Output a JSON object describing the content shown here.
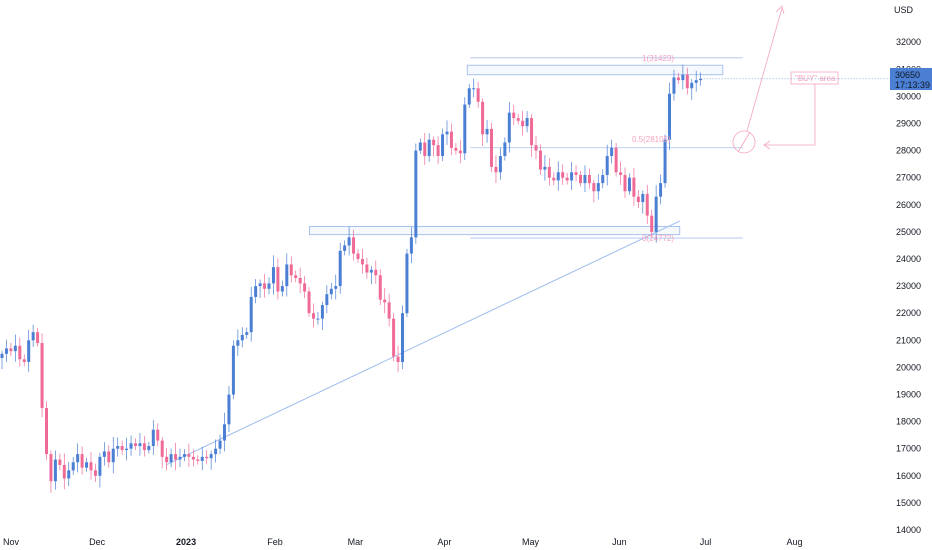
{
  "currency_label": "USD",
  "price_badge": {
    "price": "30650",
    "timer": "17:13:39"
  },
  "colors": {
    "up": "#4a7fd4",
    "down": "#f06a96",
    "trendline": "#9dbcee",
    "zone_stroke": "#a9c2ee",
    "annotation": "#f4a3bf",
    "badge_bg": "#4a7fd4"
  },
  "annotations": {
    "fib1": "1(31423)",
    "fib05": "0.5(28105)",
    "fib0": "0(24772)",
    "buy_area": "\"BUY\" area"
  },
  "chart_data": {
    "type": "candlestick",
    "title": "",
    "ylim": [
      14000,
      32000
    ],
    "y_ticks": [
      14000,
      15000,
      16000,
      17000,
      18000,
      19000,
      20000,
      21000,
      22000,
      23000,
      24000,
      25000,
      26000,
      27000,
      28000,
      29000,
      30000,
      31000,
      32000
    ],
    "x_ticks": [
      {
        "label": "Nov",
        "date": "2022-11-01"
      },
      {
        "label": "Dec",
        "date": "2022-12-01"
      },
      {
        "label": "2023",
        "date": "2023-01-01"
      },
      {
        "label": "Feb",
        "date": "2023-02-01"
      },
      {
        "label": "Mar",
        "date": "2023-03-01"
      },
      {
        "label": "Apr",
        "date": "2023-04-01"
      },
      {
        "label": "May",
        "date": "2023-05-01"
      },
      {
        "label": "Jun",
        "date": "2023-06-01"
      },
      {
        "label": "Jul",
        "date": "2023-07-01"
      },
      {
        "label": "Aug",
        "date": "2023-08-01"
      }
    ],
    "last_price": 30650,
    "closes": [
      20500,
      20700,
      20600,
      20800,
      20300,
      20200,
      21000,
      21300,
      20900,
      18500,
      16800,
      15800,
      16600,
      16400,
      15900,
      16200,
      16500,
      16800,
      16300,
      16500,
      16200,
      16000,
      16700,
      16900,
      16500,
      17000,
      17100,
      16950,
      17000,
      17200,
      17100,
      17200,
      16950,
      17100,
      17700,
      17300,
      16700,
      16500,
      16800,
      16600,
      16700,
      16800,
      16700,
      16600,
      16550,
      16700,
      16650,
      16800,
      17000,
      17300,
      17900,
      19000,
      20800,
      21000,
      21200,
      21300,
      22600,
      23000,
      23100,
      22900,
      23100,
      23700,
      22800,
      23000,
      23800,
      23400,
      23300,
      23100,
      22800,
      22000,
      21800,
      21800,
      22300,
      22700,
      22900,
      23000,
      24300,
      24500,
      24800,
      24200,
      24000,
      23800,
      23500,
      23600,
      23400,
      22500,
      22400,
      21800,
      20400,
      20200,
      22000,
      24200,
      24800,
      28000,
      28300,
      27800,
      28400,
      28200,
      27800,
      28600,
      28700,
      28100,
      28000,
      27900,
      29700,
      30300,
      30300,
      29800,
      28600,
      28800,
      27400,
      27200,
      27800,
      28300,
      29400,
      29200,
      29100,
      28900,
      29200,
      28200,
      28000,
      27300,
      27400,
      27000,
      26900,
      27200,
      27000,
      26900,
      27200,
      27100,
      26800,
      27100,
      26800,
      26500,
      26800,
      27100,
      27800,
      28100,
      27200,
      27100,
      26500,
      27000,
      26300,
      26100,
      26400,
      25600,
      25000,
      26300,
      26800,
      28400,
      30100,
      30700,
      30600,
      30800,
      30300,
      30500,
      30600,
      30650
    ],
    "trendline": [
      {
        "date": "2022-12-25",
        "price": 16400
      },
      {
        "date": "2023-06-22",
        "price": 25400
      }
    ],
    "zones": [
      {
        "from": "2023-04-09",
        "to": "2023-07-07",
        "low": 30800,
        "high": 31150
      },
      {
        "from": "2023-02-13",
        "to": "2023-06-22",
        "low": 24900,
        "high": 25200
      }
    ],
    "levels": [
      {
        "label": "1(31423)",
        "price": 31423
      },
      {
        "label": "0.5(28105)",
        "price": 28105
      },
      {
        "label": "0(24772)",
        "price": 24772
      }
    ]
  }
}
